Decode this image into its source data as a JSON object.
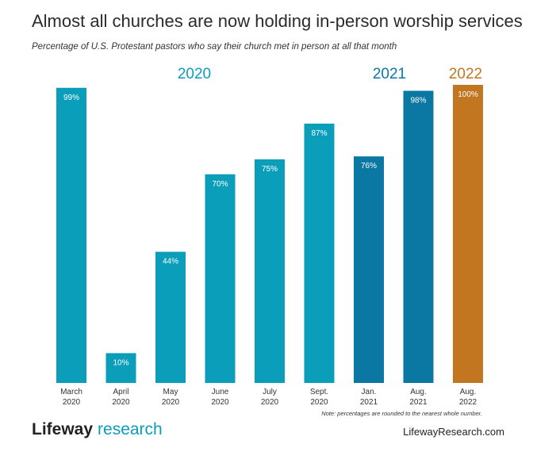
{
  "title": "Almost all churches are now holding in-person worship services",
  "subtitle": "Percentage of U.S. Protestant pastors who say their church met in person at all that month",
  "note": "Note: percentages are rounded to the nearest whole number.",
  "logo": {
    "brand": "Lifeway",
    "sub": "research"
  },
  "website": "LifewayResearch.com",
  "colors": {
    "2020": "#0a9ebb",
    "2021": "#0b77a3",
    "2022": "#c1761f"
  },
  "chart_data": {
    "type": "bar",
    "title": "Almost all churches are now holding in-person worship services",
    "subtitle": "Percentage of U.S. Protestant pastors who say their church met in person at all that month",
    "ylim": [
      0,
      100
    ],
    "grid": false,
    "groups": [
      "2020",
      "2021",
      "2022"
    ],
    "categories": [
      {
        "month": "March",
        "year": "2020"
      },
      {
        "month": "April",
        "year": "2020"
      },
      {
        "month": "May",
        "year": "2020"
      },
      {
        "month": "June",
        "year": "2020"
      },
      {
        "month": "July",
        "year": "2020"
      },
      {
        "month": "Sept.",
        "year": "2020"
      },
      {
        "month": "Jan.",
        "year": "2021"
      },
      {
        "month": "Aug.",
        "year": "2021"
      },
      {
        "month": "Aug.",
        "year": "2022"
      }
    ],
    "values": [
      99,
      10,
      44,
      70,
      75,
      87,
      76,
      98,
      100
    ],
    "data_labels": [
      "99%",
      "10%",
      "44%",
      "70%",
      "75%",
      "87%",
      "76%",
      "98%",
      "100%"
    ]
  }
}
